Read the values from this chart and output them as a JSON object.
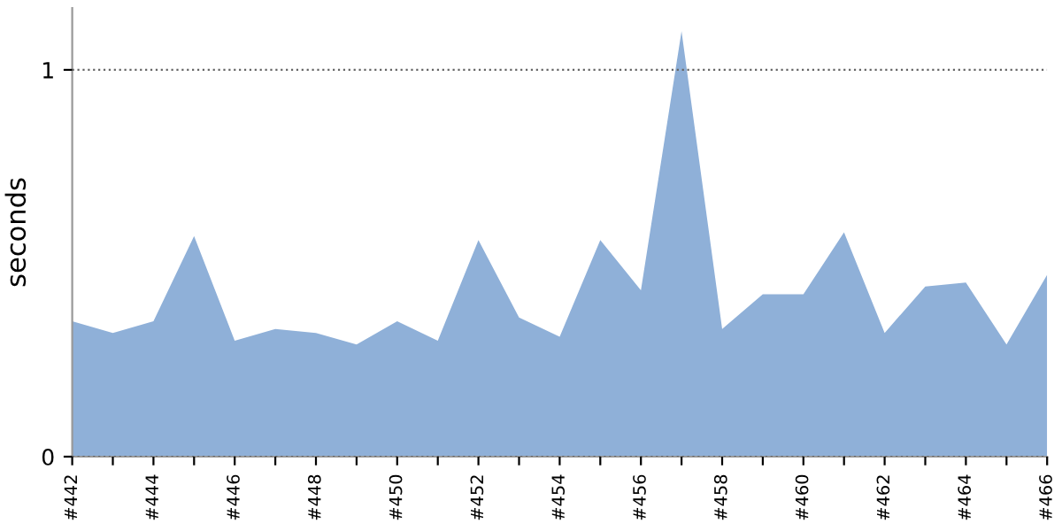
{
  "chart_data": {
    "type": "area",
    "ylabel": "seconds",
    "categories": [
      "#442",
      null,
      "#444",
      null,
      "#446",
      null,
      "#448",
      null,
      "#450",
      null,
      "#452",
      null,
      "#454",
      null,
      "#456",
      null,
      "#458",
      null,
      "#460",
      null,
      "#462",
      null,
      "#464",
      null,
      "#466"
    ],
    "series": [
      {
        "color": "#8fb0d8",
        "values": [
          0.35,
          0.32,
          0.35,
          0.57,
          0.3,
          0.33,
          0.32,
          0.29,
          0.35,
          0.3,
          0.56,
          0.36,
          0.31,
          0.56,
          0.43,
          1.1,
          0.33,
          0.42,
          0.42,
          0.58,
          0.32,
          0.44,
          0.45,
          0.29,
          0.47
        ]
      }
    ],
    "ylim": [
      0,
      1.16
    ],
    "yticks": [
      0,
      1
    ],
    "grid": "y",
    "line_style": "dotted",
    "legend": false
  }
}
